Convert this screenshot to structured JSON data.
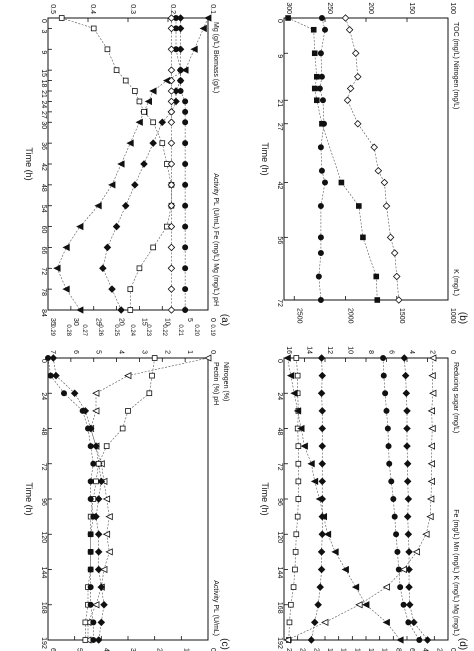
{
  "chart_data": [
    {
      "panel_label": "(a)",
      "type": "line",
      "xlabel": "Time (h)",
      "x_ticks": [
        "0",
        "3",
        "9",
        "15",
        "18",
        "21",
        "24",
        "27",
        "30",
        "36",
        "42",
        "48",
        "54",
        "60",
        "66",
        "72",
        "78",
        "84"
      ],
      "left_ticks": [
        "0",
        "5",
        "10",
        "15",
        "20",
        "25",
        "30",
        "35"
      ],
      "right_ticks": [
        "0.1",
        "0.2",
        "0.3",
        "0.4",
        "0.5"
      ],
      "left_legend": [
        "Activity PL (U/mL)",
        "Fe (mg/L)",
        "Mg (mg/L)",
        "pH"
      ],
      "right_legend": [
        "Mg (g/L)",
        "Biomass (g/L)"
      ],
      "ylim_left": [
        0,
        35
      ],
      "ylim_right": [
        0,
        0.5
      ],
      "series": [
        {
          "marker": "filled-triangle",
          "x": [
            0,
            3,
            9,
            15,
            18,
            21,
            24,
            27,
            30,
            36,
            42,
            48,
            54,
            60,
            66,
            72,
            78,
            84
          ],
          "values": [
            0,
            1,
            3,
            5,
            9,
            12,
            13,
            14,
            15,
            17,
            19,
            21,
            24,
            28,
            31,
            33,
            31,
            28
          ]
        },
        {
          "marker": "filled-circle",
          "x": [
            0,
            3,
            9,
            15,
            18,
            21,
            24,
            27,
            30,
            36,
            42,
            48,
            54,
            60,
            66,
            72,
            78,
            84
          ],
          "values": [
            7,
            7,
            7,
            6,
            6,
            6,
            5,
            5,
            5,
            5,
            5,
            5,
            5,
            5,
            5,
            5,
            5,
            5
          ]
        },
        {
          "marker": "filled-diamond",
          "x": [
            0,
            3,
            9,
            15,
            18,
            21,
            24,
            27,
            30,
            36,
            42,
            48,
            54,
            60,
            66,
            72,
            78,
            84
          ],
          "values": [
            6,
            6,
            6,
            6,
            6,
            7,
            7,
            8,
            10,
            12,
            14,
            16,
            18,
            20,
            22,
            23,
            21,
            19
          ]
        },
        {
          "marker": "open-square",
          "x": [
            0,
            3,
            9,
            15,
            18,
            21,
            24,
            27,
            30,
            36,
            42,
            48,
            54,
            60,
            66,
            72,
            78,
            84
          ],
          "values": [
            32,
            25,
            22,
            20,
            18,
            16,
            15,
            14,
            12,
            10,
            9,
            8,
            8,
            9,
            12,
            15,
            17,
            17
          ]
        },
        {
          "marker": "open-diamond",
          "x": [
            0,
            3,
            9,
            15,
            18,
            21,
            24,
            27,
            30,
            36,
            42,
            48,
            54,
            60,
            66,
            72,
            78,
            84
          ],
          "values": [
            8,
            8,
            8,
            8,
            8,
            8,
            8,
            8,
            8,
            8,
            8,
            8,
            8,
            8,
            8,
            8,
            8,
            8
          ]
        }
      ]
    },
    {
      "panel_label": "(b)",
      "type": "line",
      "xlabel": "Time (h)",
      "x_ticks": [
        "0",
        "9",
        "21",
        "27",
        "42",
        "56",
        "72"
      ],
      "left_ticks": [
        "1000",
        "1500",
        "2000",
        "2500"
      ],
      "right_ticks": [
        "100",
        "150",
        "200",
        "250",
        "300"
      ],
      "left_legend": [
        "K (mg/L)"
      ],
      "right_legend": [
        "TOC (mg/L)",
        "Nitrogen (mg/L)"
      ],
      "ylim_left": [
        1000,
        2600
      ],
      "ylim_right": [
        100,
        300
      ],
      "series": [
        {
          "marker": "filled-circle",
          "x": [
            0,
            3,
            9,
            15,
            18,
            21,
            27,
            33,
            39,
            42,
            48,
            56,
            60,
            66,
            72
          ],
          "values": [
            2230,
            2200,
            2240,
            2230,
            2250,
            2220,
            2210,
            2240,
            2230,
            2200,
            2240,
            2240,
            2240,
            2260,
            2240
          ]
        },
        {
          "marker": "filled-square",
          "x": [
            0,
            3,
            9,
            15,
            18,
            21,
            27,
            42,
            48,
            56,
            66,
            72
          ],
          "values": [
            2560,
            2310,
            2300,
            2280,
            2300,
            2280,
            2230,
            2040,
            1870,
            1830,
            1700,
            1690
          ]
        },
        {
          "marker": "open-diamond",
          "x": [
            0,
            3,
            9,
            15,
            18,
            21,
            27,
            33,
            39,
            42,
            48,
            56,
            60,
            66,
            72
          ],
          "values": [
            2000,
            1960,
            1900,
            1880,
            1950,
            1980,
            1880,
            1720,
            1680,
            1620,
            1600,
            1560,
            1520,
            1500,
            1480
          ]
        }
      ]
    },
    {
      "panel_label": "(c)",
      "type": "line",
      "xlabel": "Time (h)",
      "x_ticks": [
        "0",
        "24",
        "48",
        "72",
        "96",
        "120",
        "144",
        "168",
        "192"
      ],
      "left_ticks": [
        "0",
        "10",
        "20",
        "30",
        "40",
        "50",
        "60"
      ],
      "right_ticks": [
        "0",
        "1",
        "2",
        "3",
        "4",
        "5",
        "6",
        "7"
      ],
      "top_ticks": [
        "0.19",
        "0.20",
        "0.21",
        "0.22",
        "0.23",
        "0.24",
        "0.25",
        "0.26",
        "0.27",
        "0.28",
        "0.29"
      ],
      "left_legend": [
        "Activity PL (U/mL)"
      ],
      "right_legend": [
        "Pectin (%)",
        "pH"
      ],
      "top_legend": [
        "Nitrogen (%)"
      ],
      "ylim_left": [
        0,
        60
      ],
      "series": [
        {
          "marker": "open-triangle",
          "x": [
            0,
            12,
            24,
            36,
            48,
            60,
            72,
            84,
            96,
            108,
            120,
            132,
            144,
            156,
            168,
            180,
            192
          ],
          "values": [
            0,
            30,
            42,
            42,
            44,
            42,
            40,
            39,
            38,
            37,
            38,
            37,
            39,
            40,
            42,
            45,
            45
          ]
        },
        {
          "marker": "filled-diamond",
          "x": [
            0,
            12,
            24,
            36,
            48,
            60,
            72,
            84,
            96,
            108,
            120,
            132,
            144,
            156,
            168,
            180,
            192
          ],
          "values": [
            58,
            57,
            50,
            46,
            44,
            42,
            41,
            40,
            41,
            42,
            41,
            41,
            41,
            40,
            39,
            40,
            41
          ]
        },
        {
          "marker": "open-square",
          "x": [
            0,
            12,
            24,
            36,
            48,
            60,
            72,
            84,
            96,
            108,
            120,
            132,
            144,
            156,
            168,
            180,
            192
          ],
          "values": [
            20,
            21,
            22,
            30,
            32,
            38,
            41,
            42,
            43,
            44,
            44,
            44,
            44,
            45,
            45,
            46,
            46
          ]
        },
        {
          "marker": "filled-circle",
          "x": [
            0,
            12,
            24,
            36,
            48,
            60,
            72,
            84,
            96,
            108,
            120,
            132,
            144,
            156,
            168,
            180,
            192
          ],
          "values": [
            60,
            59,
            54,
            47,
            45,
            44,
            43,
            44,
            44,
            43,
            44,
            44,
            44,
            44,
            44,
            43,
            43
          ]
        }
      ]
    },
    {
      "panel_label": "(d)",
      "type": "line",
      "xlabel": "Time (h)",
      "x_ticks": [
        "0",
        "24",
        "48",
        "72",
        "96",
        "120",
        "144",
        "168",
        "192"
      ],
      "left_ticks": [
        "0",
        "200",
        "400",
        "600",
        "800",
        "1000",
        "1200",
        "1400",
        "1600",
        "1800",
        "2000",
        "2200",
        "2400"
      ],
      "right_ticks": [
        "0",
        "2",
        "4",
        "6",
        "8",
        "10",
        "12",
        "14",
        "16"
      ],
      "left_legend": [
        "Fe (mg/L)",
        "Mn (mg/L)",
        "K (mg/L)",
        "Mg (mg/L)"
      ],
      "right_legend": [
        "Reducing sugar (mg/L)"
      ],
      "ylim_left": [
        0,
        2400
      ],
      "series": [
        {
          "marker": "open-square",
          "x": [
            0,
            12,
            24,
            36,
            48,
            60,
            72,
            84,
            96,
            108,
            120,
            132,
            144,
            156,
            168,
            180,
            192
          ],
          "values": [
            2220,
            2200,
            2200,
            2190,
            2200,
            2190,
            2190,
            2190,
            2190,
            2200,
            2220,
            2230,
            2240,
            2260,
            2300,
            2320,
            2330
          ]
        },
        {
          "marker": "filled-diamond",
          "x": [
            0,
            12,
            24,
            36,
            48,
            60,
            72,
            84,
            96,
            108,
            120,
            132,
            144,
            156,
            168,
            180,
            192
          ],
          "values": [
            1850,
            1840,
            1850,
            1840,
            1840,
            1840,
            1840,
            1840,
            1840,
            1840,
            1840,
            1850,
            1850,
            1870,
            1900,
            1950,
            2000
          ]
        },
        {
          "marker": "filled-circle",
          "x": [
            0,
            12,
            24,
            36,
            48,
            60,
            72,
            84,
            96,
            108,
            120,
            132,
            144,
            156,
            168,
            180,
            192
          ],
          "values": [
            950,
            940,
            920,
            900,
            880,
            870,
            860,
            830,
            800,
            780,
            760,
            740,
            720,
            700,
            650,
            580,
            420
          ]
        },
        {
          "marker": "filled-diamond",
          "x": [
            0,
            12,
            24,
            36,
            48,
            60,
            72,
            84,
            96,
            108,
            120,
            132,
            144,
            156,
            168,
            180,
            192
          ],
          "values": [
            640,
            620,
            610,
            600,
            600,
            600,
            590,
            590,
            580,
            590,
            580,
            570,
            570,
            570,
            560,
            500,
            300
          ]
        },
        {
          "marker": "open-triangle",
          "x": [
            0,
            12,
            24,
            36,
            48,
            60,
            72,
            84,
            96,
            108,
            120,
            132,
            144,
            156,
            168,
            180,
            192
          ],
          "values": [
            220,
            230,
            220,
            240,
            230,
            240,
            240,
            240,
            250,
            260,
            320,
            460,
            650,
            900,
            1300,
            1800,
            2350
          ]
        },
        {
          "marker": "filled-triangle",
          "x": [
            0,
            12,
            24,
            36,
            48,
            60,
            72,
            84,
            96,
            108,
            120,
            132,
            144,
            156,
            168,
            180,
            192
          ],
          "values": [
            2350,
            2300,
            2250,
            2200,
            2150,
            2100,
            2000,
            1950,
            1880,
            1820,
            1760,
            1650,
            1500,
            1350,
            1200,
            900,
            700
          ]
        }
      ]
    }
  ]
}
